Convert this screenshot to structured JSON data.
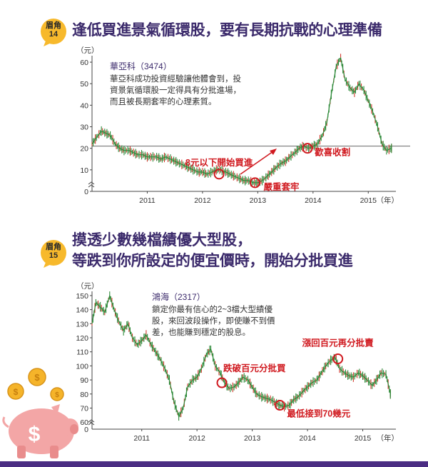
{
  "section1": {
    "badge": {
      "line1": "眉角",
      "line2": "14"
    },
    "heading": "逢低買進景氣循環股，要有長期抗戰的心理準備"
  },
  "section2": {
    "badge": {
      "line1": "眉角",
      "line2": "15"
    },
    "heading_line1": "摸透少數幾檔績優大型股，",
    "heading_line2": "等跌到你所設定的便宜價時，開始分批買進"
  },
  "chart_data": [
    {
      "type": "line",
      "title": "",
      "y_unit_label": "（元）",
      "x_unit_label": "（年）",
      "xlabel": "",
      "ylabel": "",
      "ylim": [
        0,
        63
      ],
      "y_ticks": [
        0,
        10,
        20,
        30,
        40,
        50,
        60
      ],
      "x_ticks": [
        {
          "label": "2011",
          "x": 2011.0
        },
        {
          "label": "2012",
          "x": 2012.0
        },
        {
          "label": "2013",
          "x": 2013.0
        },
        {
          "label": "2014",
          "x": 2014.0
        },
        {
          "label": "2015",
          "x": 2015.0
        }
      ],
      "xlim": [
        2010.0,
        2015.5
      ],
      "grid": false,
      "reference_line": 21,
      "series": [
        {
          "color": "#2f8a3a",
          "x": [
            2010.0,
            2010.08,
            2010.17,
            2010.25,
            2010.33,
            2010.42,
            2010.5,
            2010.58,
            2010.67,
            2010.75,
            2010.83,
            2010.92,
            2011.0,
            2011.08,
            2011.17,
            2011.25,
            2011.33,
            2011.42,
            2011.5,
            2011.58,
            2011.67,
            2011.75,
            2011.83,
            2011.92,
            2012.0,
            2012.08,
            2012.17,
            2012.25,
            2012.33,
            2012.42,
            2012.5,
            2012.58,
            2012.67,
            2012.75,
            2012.83,
            2012.92,
            2013.0,
            2013.08,
            2013.17,
            2013.25,
            2013.33,
            2013.42,
            2013.5,
            2013.58,
            2013.67,
            2013.75,
            2013.83,
            2013.92,
            2014.0,
            2014.08,
            2014.17,
            2014.25,
            2014.33,
            2014.42,
            2014.5,
            2014.58,
            2014.67,
            2014.75,
            2014.83,
            2014.92,
            2015.0,
            2015.08,
            2015.17,
            2015.25,
            2015.33,
            2015.42
          ],
          "y": [
            22,
            25,
            28,
            27,
            26,
            22,
            20,
            19,
            19,
            18,
            17,
            17,
            16,
            16,
            16,
            15,
            16,
            15,
            14,
            13,
            12,
            11,
            10,
            9,
            9,
            8,
            9,
            10,
            10,
            9,
            8,
            7,
            6,
            5,
            5,
            4,
            4,
            5,
            7,
            9,
            11,
            13,
            14,
            16,
            18,
            20,
            21,
            20,
            21,
            22,
            26,
            32,
            45,
            58,
            62,
            52,
            48,
            46,
            50,
            47,
            42,
            37,
            30,
            22,
            19,
            20
          ]
        }
      ],
      "info_box": {
        "title": "華亞科（3474）",
        "lines": [
          "華亞科成功投資經驗讓他體會到，投",
          "資景氣循環股一定得具有分批進場，",
          "而且被長期套牢的心理素質。"
        ]
      },
      "annotations": [
        {
          "text": "8元以下開始買進",
          "x": 2012.3,
          "y": 8
        },
        {
          "text": "嚴重套牢",
          "x": 2012.95,
          "y": 4
        },
        {
          "text": "歡喜收割",
          "x": 2013.9,
          "y": 20
        }
      ]
    },
    {
      "type": "line",
      "title": "",
      "y_unit_label": "（元）",
      "x_unit_label": "（年）",
      "xlabel": "",
      "ylabel": "",
      "ylim": [
        55,
        153
      ],
      "y_ticks": [
        60,
        70,
        80,
        90,
        100,
        110,
        120,
        130,
        140,
        150
      ],
      "y_axis_break_zero": "0",
      "x_ticks": [
        {
          "label": "2011",
          "x": 2011.0
        },
        {
          "label": "2012",
          "x": 2012.0
        },
        {
          "label": "2013",
          "x": 2013.0
        },
        {
          "label": "2014",
          "x": 2014.0
        },
        {
          "label": "2015",
          "x": 2015.0
        }
      ],
      "xlim": [
        2010.1,
        2015.6
      ],
      "grid": false,
      "series": [
        {
          "color": "#2f8a3a",
          "x": [
            2010.1,
            2010.17,
            2010.25,
            2010.33,
            2010.42,
            2010.5,
            2010.58,
            2010.67,
            2010.75,
            2010.83,
            2010.92,
            2011.0,
            2011.08,
            2011.17,
            2011.25,
            2011.33,
            2011.42,
            2011.5,
            2011.58,
            2011.67,
            2011.75,
            2011.83,
            2011.92,
            2012.0,
            2012.08,
            2012.17,
            2012.25,
            2012.33,
            2012.42,
            2012.5,
            2012.58,
            2012.67,
            2012.75,
            2012.83,
            2012.92,
            2013.0,
            2013.08,
            2013.17,
            2013.25,
            2013.33,
            2013.42,
            2013.5,
            2013.58,
            2013.67,
            2013.75,
            2013.83,
            2013.92,
            2014.0,
            2014.08,
            2014.17,
            2014.25,
            2014.33,
            2014.42,
            2014.5,
            2014.58,
            2014.67,
            2014.75,
            2014.83,
            2014.92,
            2015.0,
            2015.08,
            2015.17,
            2015.25,
            2015.33,
            2015.42,
            2015.5
          ],
          "y": [
            130,
            145,
            142,
            138,
            150,
            140,
            132,
            125,
            130,
            120,
            115,
            118,
            122,
            115,
            110,
            105,
            98,
            90,
            75,
            64,
            70,
            85,
            90,
            92,
            98,
            108,
            112,
            100,
            95,
            88,
            84,
            85,
            88,
            92,
            90,
            85,
            80,
            78,
            77,
            76,
            74,
            72,
            71,
            72,
            76,
            78,
            82,
            85,
            88,
            90,
            95,
            100,
            104,
            106,
            98,
            95,
            93,
            92,
            95,
            93,
            90,
            86,
            90,
            95,
            94,
            80
          ]
        }
      ],
      "info_box": {
        "title": "鴻海（2317）",
        "lines": [
          "鎖定你最有信心的2~3檔大型績優",
          "股，來回波段操作，即使賺不到價",
          "差，也能賺到穩定的股息。"
        ]
      },
      "annotations": [
        {
          "text": "跌破百元分批買",
          "x": 2012.45,
          "y": 88
        },
        {
          "text": "最低接到70幾元",
          "x": 2013.5,
          "y": 72
        },
        {
          "text": "漲回百元再分批賣",
          "x": 2014.55,
          "y": 105
        }
      ]
    }
  ]
}
